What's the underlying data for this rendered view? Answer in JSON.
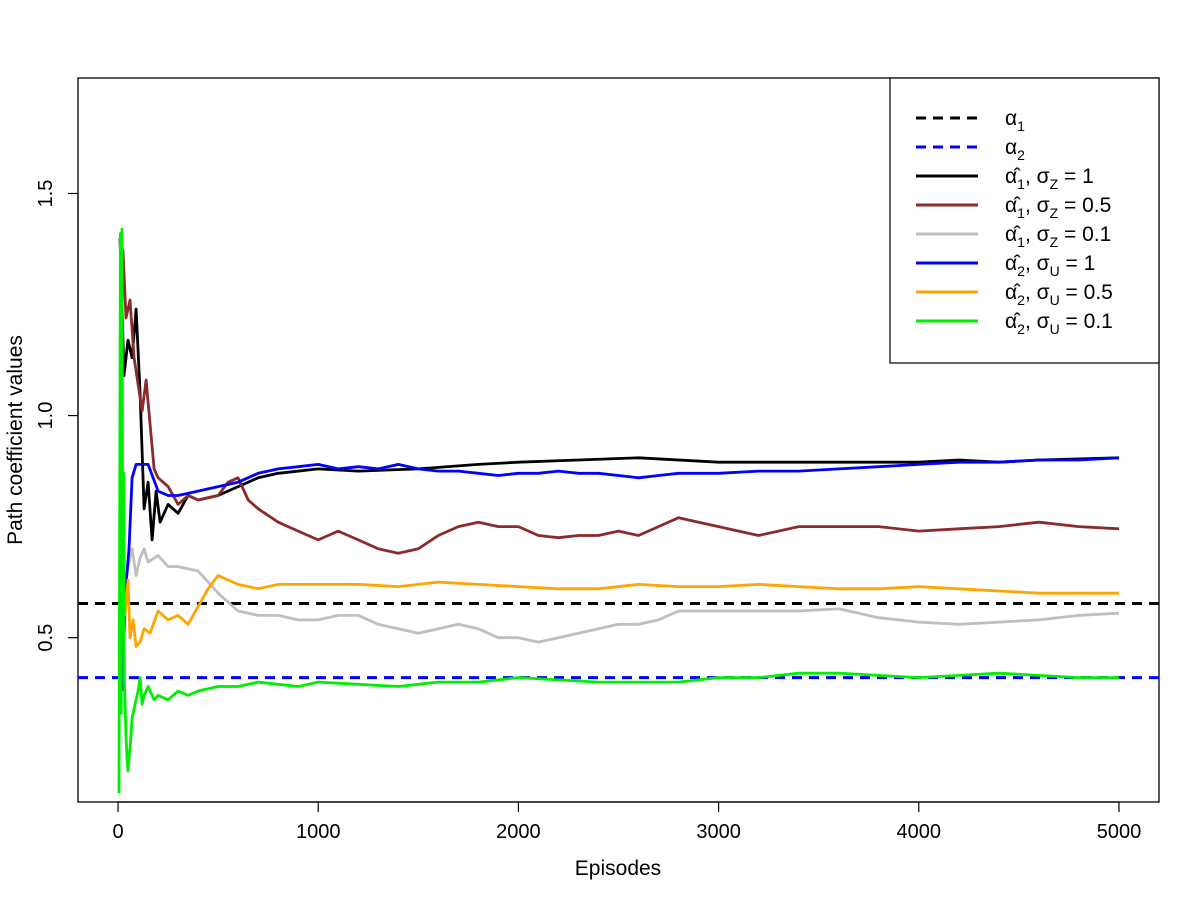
{
  "chart_data": {
    "type": "line",
    "title": "",
    "xlabel": "Episodes",
    "ylabel": "Path coefficient values",
    "xlim": [
      -200,
      5200
    ],
    "ylim": [
      0.13,
      1.76
    ],
    "xticks": [
      0,
      1000,
      2000,
      3000,
      4000,
      5000
    ],
    "yticks": [
      0.5,
      1.0,
      1.5
    ],
    "x_tick_labels": [
      "0",
      "1000",
      "2000",
      "3000",
      "4000",
      "5000"
    ],
    "y_tick_labels": [
      "0.5",
      "1.0",
      "1.5"
    ],
    "grid": false,
    "legend_position": "top-right",
    "reference_lines": [
      {
        "name": "α1",
        "value": 0.577,
        "color": "#000000",
        "style": "dashed"
      },
      {
        "name": "α2",
        "value": 0.41,
        "color": "#0000ff",
        "style": "dashed"
      }
    ],
    "legend_entries": [
      {
        "text": "α₁",
        "color": "#000000",
        "style": "dashed"
      },
      {
        "text": "α₂",
        "color": "#0000ff",
        "style": "dashed"
      },
      {
        "text": "α̂₁, σZ = 1",
        "color": "#000000",
        "style": "solid"
      },
      {
        "text": "α̂₁, σZ = 0.5",
        "color": "#8b2b2b",
        "style": "solid"
      },
      {
        "text": "α̂₁, σZ = 0.1",
        "color": "#bfbfbf",
        "style": "solid"
      },
      {
        "text": "α̂₂, σU = 1",
        "color": "#0000ff",
        "style": "solid"
      },
      {
        "text": "α̂₂, σU = 0.5",
        "color": "#ffa500",
        "style": "solid"
      },
      {
        "text": "α̂₂, σU = 0.1",
        "color": "#00ee00",
        "style": "solid"
      }
    ],
    "series": [
      {
        "name": "α̂1, σZ = 1",
        "color": "#000000",
        "x": [
          10,
          30,
          50,
          70,
          90,
          110,
          130,
          150,
          170,
          190,
          210,
          250,
          300,
          350,
          400,
          500,
          600,
          700,
          800,
          1000,
          1200,
          1500,
          1800,
          2000,
          2300,
          2600,
          3000,
          3500,
          4000,
          4200,
          4400,
          4600,
          5000
        ],
        "y": [
          1.4,
          1.09,
          1.17,
          1.13,
          1.24,
          1.05,
          0.79,
          0.85,
          0.72,
          0.83,
          0.76,
          0.8,
          0.78,
          0.82,
          0.81,
          0.82,
          0.84,
          0.86,
          0.87,
          0.88,
          0.875,
          0.88,
          0.89,
          0.895,
          0.9,
          0.905,
          0.895,
          0.895,
          0.895,
          0.9,
          0.895,
          0.9,
          0.905
        ]
      },
      {
        "name": "α̂1, σZ = 0.5",
        "color": "#8b2b2b",
        "x": [
          10,
          25,
          40,
          60,
          80,
          100,
          120,
          140,
          160,
          180,
          200,
          250,
          300,
          350,
          400,
          500,
          550,
          600,
          650,
          700,
          800,
          900,
          1000,
          1100,
          1200,
          1300,
          1400,
          1500,
          1600,
          1700,
          1800,
          1900,
          2000,
          2100,
          2200,
          2300,
          2400,
          2500,
          2600,
          2700,
          2800,
          2900,
          3000,
          3100,
          3200,
          3300,
          3400,
          3600,
          3800,
          4000,
          4200,
          4400,
          4600,
          4800,
          5000
        ],
        "y": [
          1.39,
          1.37,
          1.22,
          1.26,
          1.13,
          1.07,
          1.01,
          1.08,
          0.98,
          0.88,
          0.86,
          0.84,
          0.8,
          0.82,
          0.81,
          0.82,
          0.85,
          0.86,
          0.81,
          0.79,
          0.76,
          0.74,
          0.72,
          0.74,
          0.72,
          0.7,
          0.69,
          0.7,
          0.73,
          0.75,
          0.76,
          0.75,
          0.75,
          0.73,
          0.725,
          0.73,
          0.73,
          0.74,
          0.73,
          0.75,
          0.77,
          0.76,
          0.75,
          0.74,
          0.73,
          0.74,
          0.75,
          0.75,
          0.75,
          0.74,
          0.745,
          0.75,
          0.76,
          0.75,
          0.745
        ]
      },
      {
        "name": "α̂1, σZ = 0.1",
        "color": "#bfbfbf",
        "x": [
          15,
          30,
          50,
          70,
          90,
          110,
          130,
          150,
          200,
          250,
          300,
          400,
          500,
          600,
          700,
          800,
          900,
          1000,
          1100,
          1200,
          1300,
          1400,
          1500,
          1600,
          1700,
          1800,
          1900,
          2000,
          2100,
          2200,
          2300,
          2400,
          2500,
          2600,
          2700,
          2800,
          2900,
          3000,
          3200,
          3400,
          3600,
          3800,
          4000,
          4200,
          4400,
          4600,
          4800,
          5000
        ],
        "y": [
          0.42,
          0.6,
          0.66,
          0.7,
          0.64,
          0.68,
          0.7,
          0.67,
          0.685,
          0.66,
          0.66,
          0.65,
          0.6,
          0.56,
          0.55,
          0.55,
          0.54,
          0.54,
          0.55,
          0.55,
          0.53,
          0.52,
          0.51,
          0.52,
          0.53,
          0.52,
          0.5,
          0.5,
          0.49,
          0.5,
          0.51,
          0.52,
          0.53,
          0.53,
          0.54,
          0.56,
          0.56,
          0.56,
          0.56,
          0.56,
          0.565,
          0.545,
          0.535,
          0.53,
          0.535,
          0.54,
          0.55,
          0.555
        ]
      },
      {
        "name": "α̂2, σU = 1",
        "color": "#0000ff",
        "x": [
          20,
          40,
          55,
          70,
          90,
          110,
          150,
          200,
          250,
          300,
          400,
          500,
          600,
          700,
          800,
          900,
          1000,
          1100,
          1200,
          1300,
          1400,
          1500,
          1600,
          1700,
          1800,
          1900,
          2000,
          2100,
          2200,
          2300,
          2400,
          2500,
          2600,
          2700,
          2800,
          2900,
          3000,
          3200,
          3400,
          3600,
          3800,
          4000,
          4200,
          4400,
          4600,
          4800,
          5000
        ],
        "y": [
          0.38,
          0.62,
          0.7,
          0.86,
          0.89,
          0.89,
          0.89,
          0.83,
          0.82,
          0.82,
          0.83,
          0.84,
          0.85,
          0.87,
          0.88,
          0.885,
          0.89,
          0.88,
          0.885,
          0.88,
          0.89,
          0.88,
          0.875,
          0.875,
          0.87,
          0.865,
          0.87,
          0.87,
          0.875,
          0.87,
          0.87,
          0.865,
          0.86,
          0.865,
          0.87,
          0.87,
          0.87,
          0.875,
          0.875,
          0.88,
          0.885,
          0.89,
          0.895,
          0.895,
          0.9,
          0.9,
          0.905
        ]
      },
      {
        "name": "α̂2, σU = 0.5",
        "color": "#ffa500",
        "x": [
          20,
          35,
          50,
          60,
          75,
          90,
          110,
          130,
          160,
          200,
          250,
          300,
          350,
          400,
          450,
          500,
          600,
          700,
          800,
          1000,
          1200,
          1400,
          1600,
          1800,
          2000,
          2200,
          2400,
          2600,
          2800,
          3000,
          3200,
          3400,
          3600,
          3800,
          4000,
          4200,
          4400,
          4600,
          4800,
          5000
        ],
        "y": [
          0.61,
          0.55,
          0.63,
          0.5,
          0.54,
          0.48,
          0.49,
          0.52,
          0.51,
          0.56,
          0.54,
          0.55,
          0.53,
          0.57,
          0.61,
          0.64,
          0.62,
          0.61,
          0.62,
          0.62,
          0.62,
          0.615,
          0.625,
          0.62,
          0.615,
          0.61,
          0.61,
          0.62,
          0.615,
          0.615,
          0.62,
          0.615,
          0.61,
          0.61,
          0.615,
          0.61,
          0.605,
          0.6,
          0.6,
          0.6
        ]
      },
      {
        "name": "α̂2, σU = 0.1",
        "color": "#00ee00",
        "x": [
          5,
          12,
          16,
          20,
          24,
          28,
          32,
          36,
          40,
          45,
          50,
          55,
          60,
          65,
          70,
          80,
          90,
          100,
          110,
          120,
          130,
          150,
          180,
          200,
          250,
          300,
          350,
          400,
          500,
          600,
          700,
          800,
          900,
          1000,
          1200,
          1400,
          1600,
          1800,
          2000,
          2200,
          2400,
          2600,
          2800,
          3000,
          3200,
          3400,
          3600,
          3800,
          4000,
          4200,
          4400,
          4600,
          4800,
          5000
        ],
        "y": [
          0.15,
          1.41,
          0.33,
          1.42,
          0.55,
          0.87,
          0.4,
          0.34,
          0.28,
          0.23,
          0.2,
          0.23,
          0.25,
          0.28,
          0.32,
          0.34,
          0.36,
          0.38,
          0.41,
          0.35,
          0.37,
          0.39,
          0.36,
          0.37,
          0.36,
          0.38,
          0.37,
          0.38,
          0.39,
          0.39,
          0.4,
          0.395,
          0.39,
          0.4,
          0.395,
          0.39,
          0.4,
          0.4,
          0.41,
          0.405,
          0.4,
          0.4,
          0.4,
          0.41,
          0.41,
          0.42,
          0.42,
          0.415,
          0.41,
          0.415,
          0.42,
          0.415,
          0.41,
          0.41
        ]
      }
    ]
  }
}
